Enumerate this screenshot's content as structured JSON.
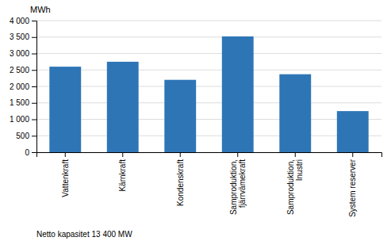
{
  "chart_data": {
    "type": "bar",
    "categories": [
      "Vattenkraft",
      "Kärnkraft",
      "Kondenskraft",
      "Samproduktion,\nfjärrvämekraft",
      "Samproduktion,\nInustri",
      "System reserver"
    ],
    "values": [
      2600,
      2750,
      2200,
      3520,
      2370,
      1250
    ],
    "color": "#2E75B6",
    "ylabel": "MWh",
    "footnote": "Netto kapasitet 13 400 MW",
    "ylim": [
      0,
      4000
    ],
    "yticks": [
      0,
      500,
      {
        "value": 1000,
        "label": "1 000"
      },
      {
        "value": 1500,
        "label": "1 500"
      },
      {
        "value": 2000,
        "label": "2 000"
      },
      {
        "value": 2500,
        "label": "2 500"
      },
      {
        "value": 3000,
        "label": "3 000"
      },
      {
        "value": 3500,
        "label": "3 500"
      },
      {
        "value": 4000,
        "label": "4 000"
      }
    ],
    "grid": true
  }
}
